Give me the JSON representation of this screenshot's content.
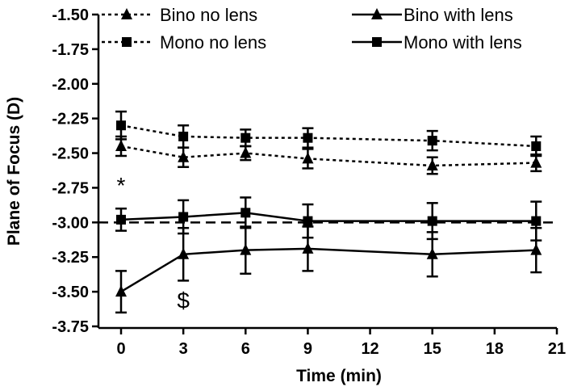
{
  "chart_data": {
    "type": "line",
    "title": "",
    "xlabel": "Time (min)",
    "ylabel": "Plane of Focus (D)",
    "x": [
      0,
      3,
      6,
      9,
      15,
      20
    ],
    "xlim": [
      0,
      21
    ],
    "ylim": [
      -3.75,
      -1.5
    ],
    "xticks": [
      0,
      3,
      6,
      9,
      12,
      15,
      18,
      21
    ],
    "yticks": [
      -1.5,
      -1.75,
      -2.0,
      -2.25,
      -2.5,
      -2.75,
      -3.0,
      -3.25,
      -3.5,
      -3.75
    ],
    "xtick_labels": [
      "0",
      "3",
      "6",
      "9",
      "12",
      "15",
      "18",
      "21"
    ],
    "ytick_labels": [
      "-1.50",
      "-1.75",
      "-2.00",
      "-2.25",
      "-2.50",
      "-2.75",
      "-3.00",
      "-3.25",
      "-3.50",
      "-3.75"
    ],
    "grid": false,
    "legend_position": "top",
    "reference_line": {
      "y": -3.0,
      "style": "dashed"
    },
    "series": [
      {
        "name": "Bino no lens",
        "marker": "triangle",
        "line": "dotted",
        "values": [
          -2.45,
          -2.53,
          -2.5,
          -2.54,
          -2.59,
          -2.57
        ],
        "errors": [
          0.07,
          0.07,
          0.05,
          0.07,
          0.06,
          0.06
        ]
      },
      {
        "name": "Mono no lens",
        "marker": "square",
        "line": "dotted",
        "values": [
          -2.3,
          -2.38,
          -2.39,
          -2.39,
          -2.41,
          -2.45
        ],
        "errors": [
          0.1,
          0.08,
          0.06,
          0.07,
          0.07,
          0.07
        ]
      },
      {
        "name": "Bino with lens",
        "marker": "triangle",
        "line": "solid",
        "values": [
          -3.5,
          -3.23,
          -3.2,
          -3.19,
          -3.23,
          -3.2
        ],
        "errors": [
          0.15,
          0.19,
          0.17,
          0.16,
          0.16,
          0.16
        ]
      },
      {
        "name": "Mono with lens",
        "marker": "square",
        "line": "solid",
        "values": [
          -2.98,
          -2.96,
          -2.93,
          -2.99,
          -2.99,
          -2.99
        ],
        "errors": [
          0.08,
          0.12,
          0.11,
          0.12,
          0.13,
          0.14
        ]
      }
    ],
    "annotations": [
      {
        "text": "*",
        "x": 0,
        "y": -2.73
      },
      {
        "text": "$",
        "x": 3,
        "y": -3.56
      }
    ]
  }
}
